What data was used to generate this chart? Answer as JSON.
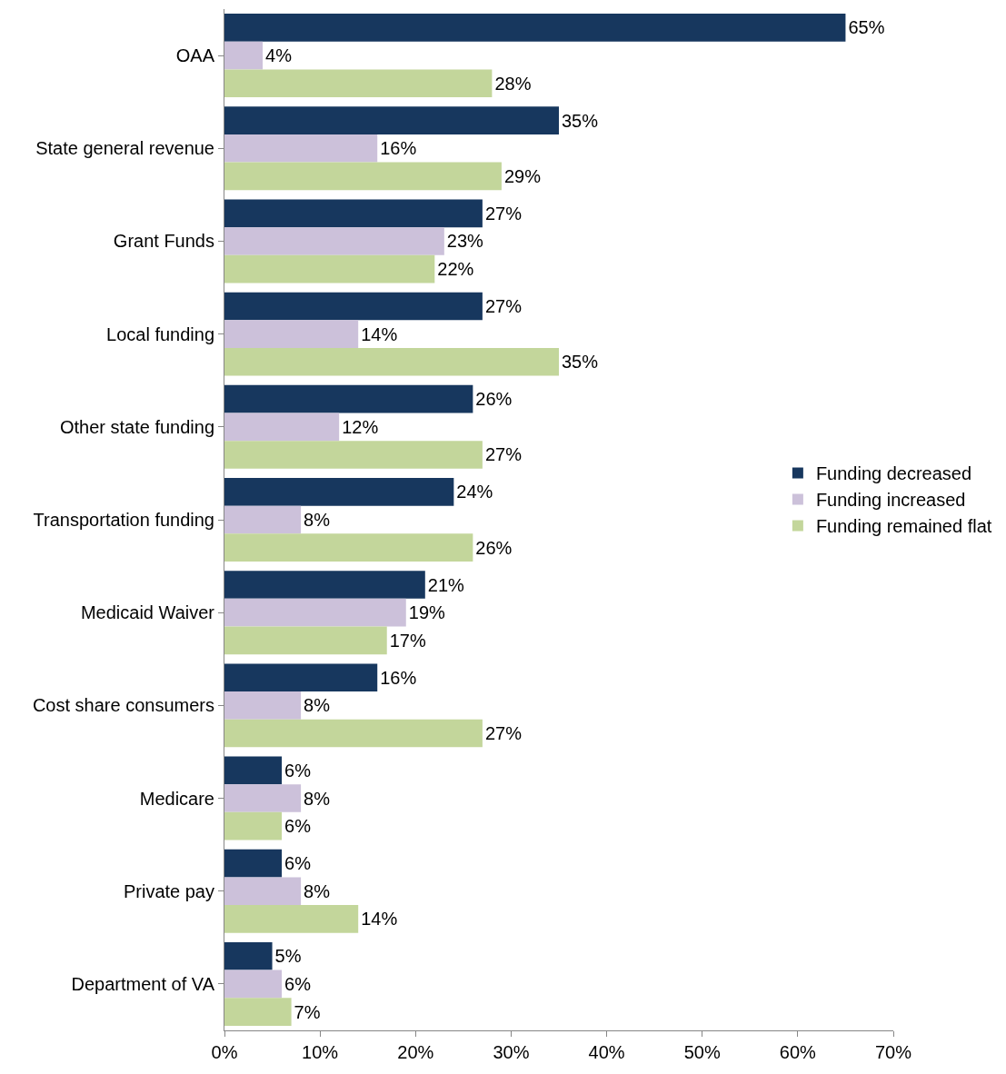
{
  "chart_data": {
    "type": "bar",
    "orientation": "horizontal",
    "categories": [
      "OAA",
      "State general revenue",
      "Grant Funds",
      "Local funding",
      "Other state funding",
      "Transportation funding",
      "Medicaid Waiver",
      "Cost share consumers",
      "Medicare",
      "Private pay",
      "Department of VA"
    ],
    "series": [
      {
        "name": "Funding decreased",
        "color": "#17375e",
        "values": [
          65,
          35,
          27,
          27,
          26,
          24,
          21,
          16,
          6,
          6,
          5
        ],
        "value_labels": [
          "65%",
          "35%",
          "27%",
          "27%",
          "26%",
          "24%",
          "21%",
          "16%",
          "6%",
          "6%",
          "5%"
        ]
      },
      {
        "name": "Funding increased",
        "color": "#ccc1da",
        "values": [
          4,
          16,
          23,
          14,
          12,
          8,
          19,
          8,
          8,
          8,
          6
        ],
        "value_labels": [
          "4%",
          "16%",
          "23%",
          "14%",
          "12%",
          "8%",
          "19%",
          "8%",
          "8%",
          "8%",
          "6%"
        ]
      },
      {
        "name": "Funding remained flat",
        "color": "#c3d69b",
        "values": [
          28,
          29,
          22,
          35,
          27,
          26,
          17,
          27,
          6,
          14,
          7
        ],
        "value_labels": [
          "28%",
          "29%",
          "22%",
          "35%",
          "27%",
          "26%",
          "17%",
          "27%",
          "6%",
          "14%",
          "7%"
        ]
      }
    ],
    "xlim": [
      0,
      70
    ],
    "xticks": [
      {
        "value": 0,
        "label": "0%"
      },
      {
        "value": 10,
        "label": "10%"
      },
      {
        "value": 20,
        "label": "20%"
      },
      {
        "value": 30,
        "label": "30%"
      },
      {
        "value": 40,
        "label": "40%"
      },
      {
        "value": 50,
        "label": "50%"
      },
      {
        "value": 60,
        "label": "60%"
      },
      {
        "value": 70,
        "label": "70%"
      }
    ],
    "legend": "right"
  }
}
